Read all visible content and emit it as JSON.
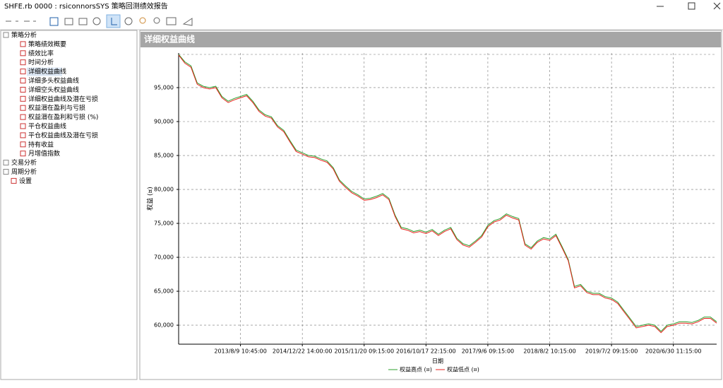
{
  "window": {
    "title": "SHFE.rb 0000 : rsiconnorsSYS 策略回测绩效报告"
  },
  "tree": [
    {
      "label": "策略分析",
      "children": [
        "策略绩效概要",
        "绩效比率",
        "时间分析",
        "详细权益曲线",
        "详细多头权益曲线",
        "详细空头权益曲线",
        "详细权益曲线及潜在亏损",
        "权益潜在盈利与亏损",
        "权益潜在盈利和亏损 (%)",
        "平仓权益曲线",
        "平仓权益曲线及潜在亏损",
        "持有收益",
        "月增值指数"
      ]
    },
    {
      "label": "交易分析"
    },
    {
      "label": "周期分析"
    },
    {
      "label": "设置"
    }
  ],
  "panel": {
    "title": "详细权益曲线"
  },
  "chart_data": {
    "type": "line",
    "x_label": "日期",
    "y_label": "权益 (¤)",
    "categories": [
      null,
      null,
      null,
      null,
      null,
      null,
      null,
      null,
      null,
      null,
      "2013/8/9 10:45:00",
      null,
      null,
      null,
      null,
      null,
      null,
      null,
      null,
      null,
      "2014/12/22 14:00:00",
      null,
      null,
      null,
      null,
      null,
      null,
      null,
      null,
      null,
      "2015/11/20 09:15:00",
      null,
      null,
      null,
      null,
      null,
      null,
      null,
      null,
      null,
      "2016/10/17 22:15:00",
      null,
      null,
      null,
      null,
      null,
      null,
      null,
      null,
      null,
      "2017/9/6 09:15:00",
      null,
      null,
      null,
      null,
      null,
      null,
      null,
      null,
      null,
      "2018/8/2 10:15:00",
      null,
      null,
      null,
      null,
      null,
      null,
      null,
      null,
      null,
      "2019/7/2 09:15:00",
      null,
      null,
      null,
      null,
      null,
      null,
      null,
      null,
      null,
      "2020/6/30 11:15:00",
      null,
      null,
      null,
      null,
      null,
      null,
      null
    ],
    "series": [
      {
        "name": "权益高点 (¤)",
        "color": "#2ca02c",
        "values": [
          99900,
          98800,
          98200,
          95700,
          95200,
          95000,
          95200,
          93700,
          93000,
          93400,
          93700,
          94000,
          93000,
          91700,
          91000,
          90700,
          89400,
          88700,
          87200,
          85800,
          85400,
          85000,
          84900,
          84500,
          84200,
          83200,
          81400,
          80500,
          79700,
          79200,
          78600,
          78700,
          79000,
          79400,
          78700,
          76200,
          74400,
          74200,
          73800,
          74000,
          73700,
          74100,
          73400,
          74000,
          74400,
          72800,
          72000,
          71700,
          72400,
          73200,
          74700,
          75400,
          75700,
          76400,
          76000,
          75700,
          72000,
          71400,
          72400,
          72900,
          72700,
          73400,
          71600,
          69700,
          65700,
          66000,
          65000,
          64700,
          64700,
          64200,
          64000,
          63400,
          62200,
          61000,
          59800,
          60000,
          60200,
          60000,
          59100,
          60000,
          60200,
          60500,
          60500,
          60400,
          60700,
          61200,
          61200,
          60500
        ]
      },
      {
        "name": "权益低点 (¤)",
        "color": "#e8221c",
        "values": [
          99800,
          98600,
          98000,
          95500,
          95000,
          94800,
          95000,
          93500,
          92800,
          93200,
          93500,
          93800,
          92800,
          91500,
          90800,
          90500,
          89200,
          88500,
          87000,
          85600,
          85200,
          84800,
          84700,
          84300,
          84000,
          83000,
          81200,
          80300,
          79500,
          79000,
          78400,
          78500,
          78800,
          79200,
          78500,
          76000,
          74200,
          74000,
          73600,
          73800,
          73500,
          73900,
          73200,
          73800,
          74200,
          72600,
          71800,
          71500,
          72200,
          73000,
          74500,
          75200,
          75500,
          76200,
          75800,
          75500,
          71800,
          71200,
          72200,
          72700,
          72500,
          73200,
          71400,
          69500,
          65500,
          65800,
          64800,
          64500,
          64500,
          64000,
          63800,
          63200,
          62000,
          60800,
          59600,
          59800,
          60000,
          59800,
          58900,
          59800,
          60000,
          60300,
          60300,
          60200,
          60500,
          61000,
          61000,
          60300
        ]
      }
    ],
    "ylim": [
      57200,
      100100
    ],
    "yticks": [
      {
        "value": 60000,
        "label": "60,000"
      },
      {
        "value": 65000,
        "label": "65,000"
      },
      {
        "value": 70000,
        "label": "70,000"
      },
      {
        "value": 75000,
        "label": "75,000"
      },
      {
        "value": 80000,
        "label": "80,000"
      },
      {
        "value": 85000,
        "label": "85,000"
      },
      {
        "value": 90000,
        "label": "90,000"
      },
      {
        "value": 95000,
        "label": "95,000"
      }
    ],
    "grid": true
  }
}
